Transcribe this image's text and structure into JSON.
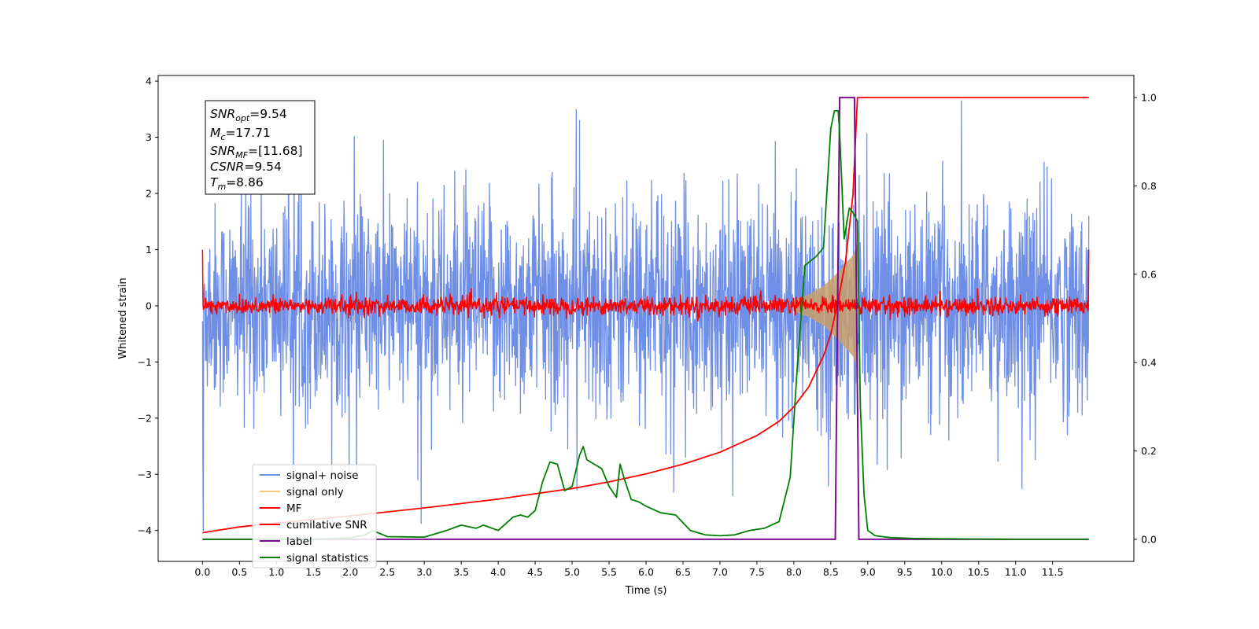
{
  "chart_data": {
    "type": "line",
    "xlabel": "Time (s)",
    "ylabel": "Whitened strain",
    "ylabel_right": "",
    "xlim": [
      -0.6,
      12.6
    ],
    "ylim": [
      -4.55,
      4.1
    ],
    "ylim_right": [
      -0.05,
      1.05
    ],
    "xticks": [
      "0.0",
      "0.5",
      "1.0",
      "1.5",
      "2.0",
      "2.5",
      "3.0",
      "3.5",
      "4.0",
      "4.5",
      "5.0",
      "5.5",
      "6.0",
      "6.5",
      "7.0",
      "7.5",
      "8.0",
      "8.5",
      "9.0",
      "9.5",
      "10.0",
      "10.5",
      "11.0",
      "11.5"
    ],
    "yticks": [
      "4",
      "3",
      "2",
      "1",
      "0",
      "−1",
      "−2",
      "−3",
      "−4"
    ],
    "yticks_right": [
      "1.0",
      "0.8",
      "0.6",
      "0.4",
      "0.2",
      "0.0"
    ],
    "grid": false,
    "legend_position": "lower-left",
    "info_box": {
      "snr_opt": {
        "sym": "SNR",
        "sub": "opt",
        "val": "=9.54"
      },
      "mc": {
        "sym": "M",
        "sub": "c",
        "val": "=17.71"
      },
      "snr_mf": {
        "sym": "SNR",
        "sub": "MF",
        "val": "=[11.68]"
      },
      "csnr": {
        "sym": "CSNR",
        "sub": "",
        "val": "=9.54"
      },
      "tm": {
        "sym": "T",
        "sub": "m",
        "val": "=8.86"
      }
    },
    "series": [
      {
        "name": "signal+ noise",
        "color": "#6f8fe6",
        "axis": "left",
        "description_values": {
          "noise_std": 0.9,
          "typical_range": [
            -3.3,
            3.6
          ],
          "t_range": [
            0.0,
            11.99
          ]
        }
      },
      {
        "name": "signal only",
        "color": "#f5c97c",
        "axis": "left",
        "chirp": {
          "t": [
            8.0,
            8.2,
            8.4,
            8.6,
            8.7,
            8.8,
            8.86
          ],
          "amplitude": [
            0.1,
            0.2,
            0.35,
            0.6,
            0.75,
            0.9,
            1.1
          ]
        }
      },
      {
        "name": "MF",
        "color": "#ff0000",
        "axis": "left",
        "description_values": {
          "noise_std": 0.08,
          "t_range": [
            0.0,
            11.99
          ],
          "edge_value": 1.0
        }
      },
      {
        "name": "cumilative SNR",
        "color": "#ff0000",
        "axis": "right",
        "x": [
          0.0,
          0.5,
          1.0,
          1.5,
          2.0,
          2.5,
          3.0,
          3.5,
          4.0,
          4.5,
          5.0,
          5.5,
          6.0,
          6.5,
          7.0,
          7.5,
          7.8,
          8.0,
          8.2,
          8.4,
          8.5,
          8.6,
          8.7,
          8.8,
          8.86,
          11.99
        ],
        "values": [
          0.015,
          0.028,
          0.037,
          0.045,
          0.053,
          0.062,
          0.071,
          0.081,
          0.091,
          0.103,
          0.115,
          0.13,
          0.148,
          0.17,
          0.197,
          0.235,
          0.267,
          0.3,
          0.345,
          0.415,
          0.465,
          0.54,
          0.63,
          0.78,
          1.0,
          1.0
        ]
      },
      {
        "name": "label",
        "color": "#7b0a8e",
        "axis": "right",
        "x": [
          0.0,
          8.56,
          8.62,
          8.82,
          8.88,
          11.99
        ],
        "values": [
          0.0,
          0.0,
          1.0,
          1.0,
          0.0,
          0.0
        ]
      },
      {
        "name": "signal statistics",
        "color": "#008000",
        "axis": "right",
        "x": [
          0.0,
          0.5,
          1.0,
          1.5,
          2.0,
          2.2,
          2.3,
          2.5,
          3.0,
          3.3,
          3.5,
          3.7,
          3.8,
          4.0,
          4.2,
          4.3,
          4.4,
          4.5,
          4.6,
          4.7,
          4.8,
          4.9,
          5.0,
          5.1,
          5.15,
          5.2,
          5.3,
          5.4,
          5.5,
          5.6,
          5.65,
          5.7,
          5.8,
          5.9,
          6.0,
          6.2,
          6.4,
          6.6,
          6.8,
          7.0,
          7.2,
          7.4,
          7.6,
          7.8,
          7.95,
          8.05,
          8.15,
          8.3,
          8.4,
          8.5,
          8.55,
          8.6,
          8.62,
          8.68,
          8.72,
          8.75,
          8.8,
          8.86,
          8.9,
          8.95,
          9.0,
          9.1,
          9.3,
          9.6,
          10.0,
          11.0,
          11.99
        ],
        "values": [
          0.0,
          0.0,
          0.0,
          0.0,
          0.003,
          0.01,
          0.02,
          0.006,
          0.005,
          0.02,
          0.032,
          0.025,
          0.032,
          0.02,
          0.05,
          0.055,
          0.05,
          0.065,
          0.13,
          0.175,
          0.17,
          0.11,
          0.12,
          0.19,
          0.21,
          0.18,
          0.17,
          0.16,
          0.12,
          0.095,
          0.17,
          0.14,
          0.09,
          0.085,
          0.075,
          0.06,
          0.055,
          0.02,
          0.01,
          0.008,
          0.01,
          0.02,
          0.025,
          0.04,
          0.14,
          0.4,
          0.62,
          0.64,
          0.66,
          0.93,
          0.97,
          0.97,
          0.92,
          0.68,
          0.72,
          0.75,
          0.74,
          0.72,
          0.3,
          0.1,
          0.02,
          0.008,
          0.004,
          0.002,
          0.001,
          0.0,
          0.0
        ]
      }
    ]
  }
}
